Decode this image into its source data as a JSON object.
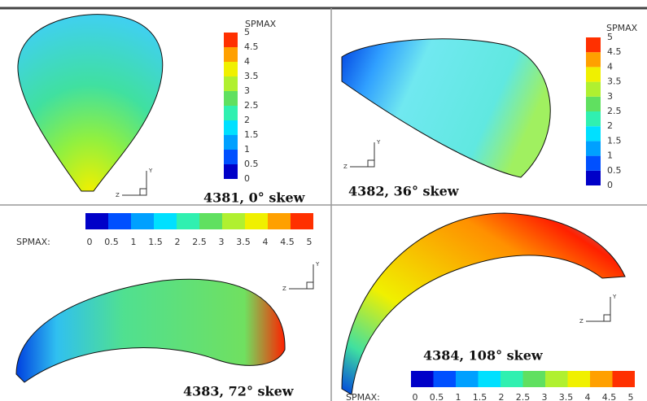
{
  "panels": [
    {
      "label": "4381, 0° skew",
      "colorbar": {
        "title": "SPMAX",
        "ticks": [
          5,
          4.5,
          4,
          3.5,
          3,
          2.5,
          2,
          1.5,
          1,
          0.5,
          0
        ]
      },
      "axes": {
        "y": "Y",
        "z": "Z"
      }
    },
    {
      "label": "4382, 36° skew",
      "colorbar": {
        "title": "SPMAX",
        "ticks": [
          5,
          4.5,
          4,
          3.5,
          3,
          2.5,
          2,
          1.5,
          1,
          0.5,
          0
        ]
      },
      "axes": {
        "y": "Y",
        "z": "Z"
      }
    },
    {
      "label": "4383, 72° skew",
      "colorbar": {
        "title": "SPMAX:",
        "ticks": [
          0,
          0.5,
          1,
          1.5,
          2,
          2.5,
          3,
          3.5,
          4,
          4.5,
          5
        ]
      },
      "axes": {
        "y": "Y",
        "z": "Z"
      }
    },
    {
      "label": "4384, 108° skew",
      "colorbar": {
        "title": "SPMAX:",
        "ticks": [
          0,
          0.5,
          1,
          1.5,
          2,
          2.5,
          3,
          3.5,
          4,
          4.5,
          5
        ]
      },
      "axes": {
        "y": "Y",
        "z": "Z"
      }
    }
  ]
}
